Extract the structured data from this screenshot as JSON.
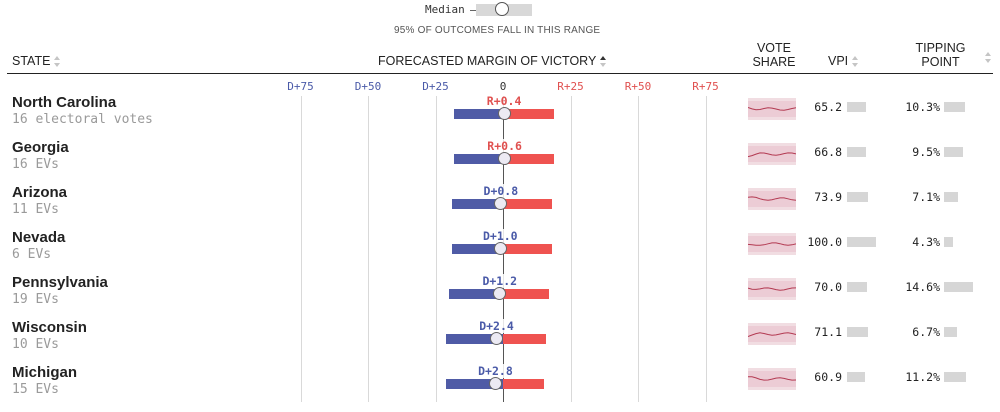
{
  "legend": {
    "median_label": "Median",
    "caption": "95% OF OUTCOMES FALL IN THIS RANGE"
  },
  "header": {
    "state": "STATE",
    "margin": "FORECASTED MARGIN OF VICTORY",
    "vote_share_line1": "VOTE",
    "vote_share_line2": "SHARE",
    "vpi": "VPI",
    "tipping_line1": "TIPPING",
    "tipping_line2": "POINT"
  },
  "axis": {
    "ticks": [
      {
        "label": "D+75",
        "value": -75
      },
      {
        "label": "D+50",
        "value": -50
      },
      {
        "label": "D+25",
        "value": -25
      },
      {
        "label": "0",
        "value": 0
      },
      {
        "label": "R+25",
        "value": 25
      },
      {
        "label": "R+50",
        "value": 50
      },
      {
        "label": "R+75",
        "value": 75
      }
    ]
  },
  "colors": {
    "dem": "#4f5ba6",
    "rep": "#ef5350",
    "sparkline": "#b33a52"
  },
  "rows": [
    {
      "name": "North Carolina",
      "ev": "16 electoral votes",
      "margin_label": "R+0.4",
      "median": 0.4,
      "low": -18.0,
      "high": 19.0,
      "vpi": "65.2",
      "vpi_value": 65.2,
      "tipping": "10.3%",
      "tipping_value": 10.3
    },
    {
      "name": "Georgia",
      "ev": "16 EVs",
      "margin_label": "R+0.6",
      "median": 0.6,
      "low": -18.0,
      "high": 19.0,
      "vpi": "66.8",
      "vpi_value": 66.8,
      "tipping": "9.5%",
      "tipping_value": 9.5
    },
    {
      "name": "Arizona",
      "ev": "11 EVs",
      "margin_label": "D+0.8",
      "median": -0.8,
      "low": -19.0,
      "high": 18.0,
      "vpi": "73.9",
      "vpi_value": 73.9,
      "tipping": "7.1%",
      "tipping_value": 7.1
    },
    {
      "name": "Nevada",
      "ev": "6 EVs",
      "margin_label": "D+1.0",
      "median": -1.0,
      "low": -19.0,
      "high": 18.0,
      "vpi": "100.0",
      "vpi_value": 100.0,
      "tipping": "4.3%",
      "tipping_value": 4.3
    },
    {
      "name": "Pennsylvania",
      "ev": "19 EVs",
      "margin_label": "D+1.2",
      "median": -1.2,
      "low": -20.0,
      "high": 17.0,
      "vpi": "70.0",
      "vpi_value": 70.0,
      "tipping": "14.6%",
      "tipping_value": 14.6
    },
    {
      "name": "Wisconsin",
      "ev": "10 EVs",
      "margin_label": "D+2.4",
      "median": -2.4,
      "low": -21.0,
      "high": 16.0,
      "vpi": "71.1",
      "vpi_value": 71.1,
      "tipping": "6.7%",
      "tipping_value": 6.7
    },
    {
      "name": "Michigan",
      "ev": "15 EVs",
      "margin_label": "D+2.8",
      "median": -2.8,
      "low": -21.0,
      "high": 15.0,
      "vpi": "60.9",
      "vpi_value": 60.9,
      "tipping": "11.2%",
      "tipping_value": 11.2
    }
  ]
}
